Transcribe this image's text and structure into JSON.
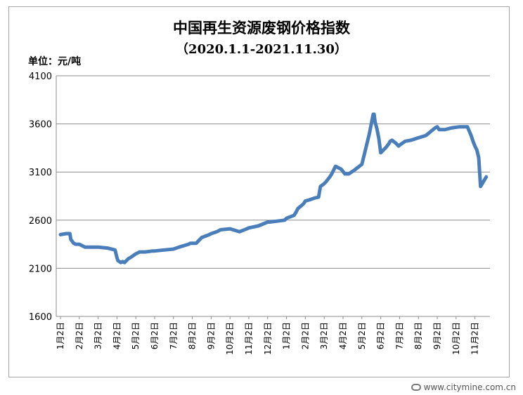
{
  "chart_data": {
    "type": "line",
    "title": "中国再生资源废钢价格指数",
    "subtitle": "（2020.1.1-2021.11.30）",
    "unit_label": "单位：元/吨",
    "ylim": [
      1600,
      4100
    ],
    "yticks": [
      1600,
      2100,
      2600,
      3100,
      3600,
      4100
    ],
    "xticks": [
      "1月2日",
      "2月2日",
      "3月2日",
      "4月2日",
      "5月2日",
      "6月2日",
      "7月2日",
      "8月2日",
      "9月2日",
      "10月2日",
      "11月2日",
      "12月2日",
      "1月2日",
      "2月2日",
      "3月2日",
      "4月2日",
      "5月2日",
      "6月2日",
      "7月2日",
      "8月2日",
      "9月2日",
      "10月2日",
      "11月2日"
    ],
    "grid": true,
    "line_color": "#4a7ebb",
    "series": [
      {
        "x": [
          0,
          0.3,
          0.5,
          0.55,
          0.7,
          0.8,
          1.0,
          1.1,
          1.3,
          1.5,
          2.0,
          2.5,
          2.9,
          3.0,
          3.05,
          3.2,
          3.3,
          3.4,
          3.6,
          3.7,
          4.0,
          4.2,
          4.5,
          4.9,
          5.0,
          5.5,
          6.0,
          6.3,
          6.8,
          6.9,
          7.2,
          7.5,
          7.9,
          8.0,
          8.3,
          8.5,
          9.0,
          9.5,
          9.9,
          10.0,
          10.5,
          11.0,
          11.1,
          11.5,
          11.9,
          12.0,
          12.4,
          12.5,
          12.6,
          12.9,
          13.0,
          13.2,
          13.5,
          13.7,
          13.8,
          14.0,
          14.1,
          14.3,
          14.4,
          14.6,
          14.9,
          15.1,
          15.3,
          15.6,
          16.0,
          16.4,
          16.6,
          16.65,
          16.7,
          16.8,
          16.9,
          17.0,
          17.3,
          17.45,
          17.5,
          17.6,
          17.8,
          17.95,
          18.0,
          18.3,
          18.6,
          18.9,
          19.4,
          19.9,
          20.0,
          20.1,
          20.4,
          20.8,
          21.2,
          21.6,
          21.8,
          21.9,
          22.0,
          22.1,
          22.2,
          22.3,
          22.6
        ],
        "values": [
          2450,
          2460,
          2460,
          2400,
          2360,
          2350,
          2350,
          2340,
          2320,
          2320,
          2320,
          2310,
          2290,
          2210,
          2180,
          2160,
          2170,
          2160,
          2200,
          2210,
          2250,
          2270,
          2270,
          2280,
          2280,
          2290,
          2300,
          2320,
          2350,
          2360,
          2360,
          2420,
          2450,
          2460,
          2480,
          2500,
          2510,
          2480,
          2510,
          2520,
          2540,
          2580,
          2580,
          2590,
          2600,
          2620,
          2650,
          2680,
          2720,
          2770,
          2800,
          2810,
          2830,
          2840,
          2950,
          2980,
          3000,
          3050,
          3080,
          3160,
          3130,
          3080,
          3080,
          3120,
          3180,
          3500,
          3700,
          3700,
          3620,
          3550,
          3450,
          3300,
          3360,
          3400,
          3420,
          3430,
          3400,
          3370,
          3380,
          3420,
          3430,
          3450,
          3480,
          3560,
          3570,
          3540,
          3540,
          3560,
          3570,
          3570,
          3480,
          3420,
          3370,
          3330,
          3250,
          2950,
          3050
        ]
      }
    ],
    "watermark": "www.citymine.com.cn"
  }
}
